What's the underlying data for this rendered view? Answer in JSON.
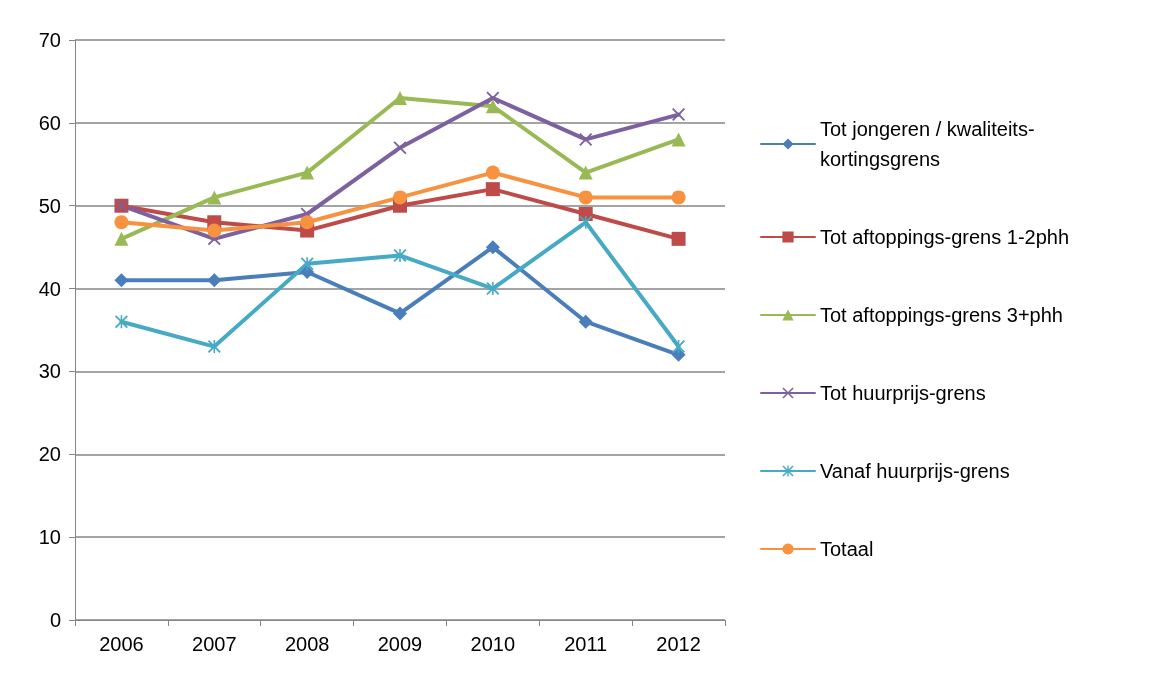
{
  "chart_data": {
    "type": "line",
    "categories": [
      "2006",
      "2007",
      "2008",
      "2009",
      "2010",
      "2011",
      "2012"
    ],
    "series": [
      {
        "name": "Tot jongeren / kwaliteits-kortingsgrens",
        "color": "#4a7ebb",
        "marker": "diamond",
        "values": [
          41,
          41,
          42,
          37,
          45,
          36,
          32
        ]
      },
      {
        "name": "Tot aftoppings-grens 1-2phh",
        "color": "#be4b48",
        "marker": "square",
        "values": [
          50,
          48,
          47,
          50,
          52,
          49,
          46
        ]
      },
      {
        "name": "Tot aftoppings-grens 3+phh",
        "color": "#98b954",
        "marker": "triangle",
        "values": [
          46,
          51,
          54,
          63,
          62,
          54,
          58
        ]
      },
      {
        "name": "Tot huurprijs-grens",
        "color": "#7d60a0",
        "marker": "cross",
        "values": [
          50,
          46,
          49,
          57,
          63,
          58,
          61
        ]
      },
      {
        "name": "Vanaf huurprijs-grens",
        "color": "#46aac5",
        "marker": "star",
        "values": [
          36,
          33,
          43,
          44,
          40,
          48,
          33
        ]
      },
      {
        "name": "Totaal",
        "color": "#f69240",
        "marker": "circle",
        "values": [
          48,
          47,
          48,
          51,
          54,
          51,
          51
        ]
      }
    ],
    "ylim": [
      0,
      70
    ],
    "yticks": [
      0,
      10,
      20,
      30,
      40,
      50,
      60,
      70
    ],
    "grid": "y",
    "legend": "right",
    "line_style": "solid"
  }
}
